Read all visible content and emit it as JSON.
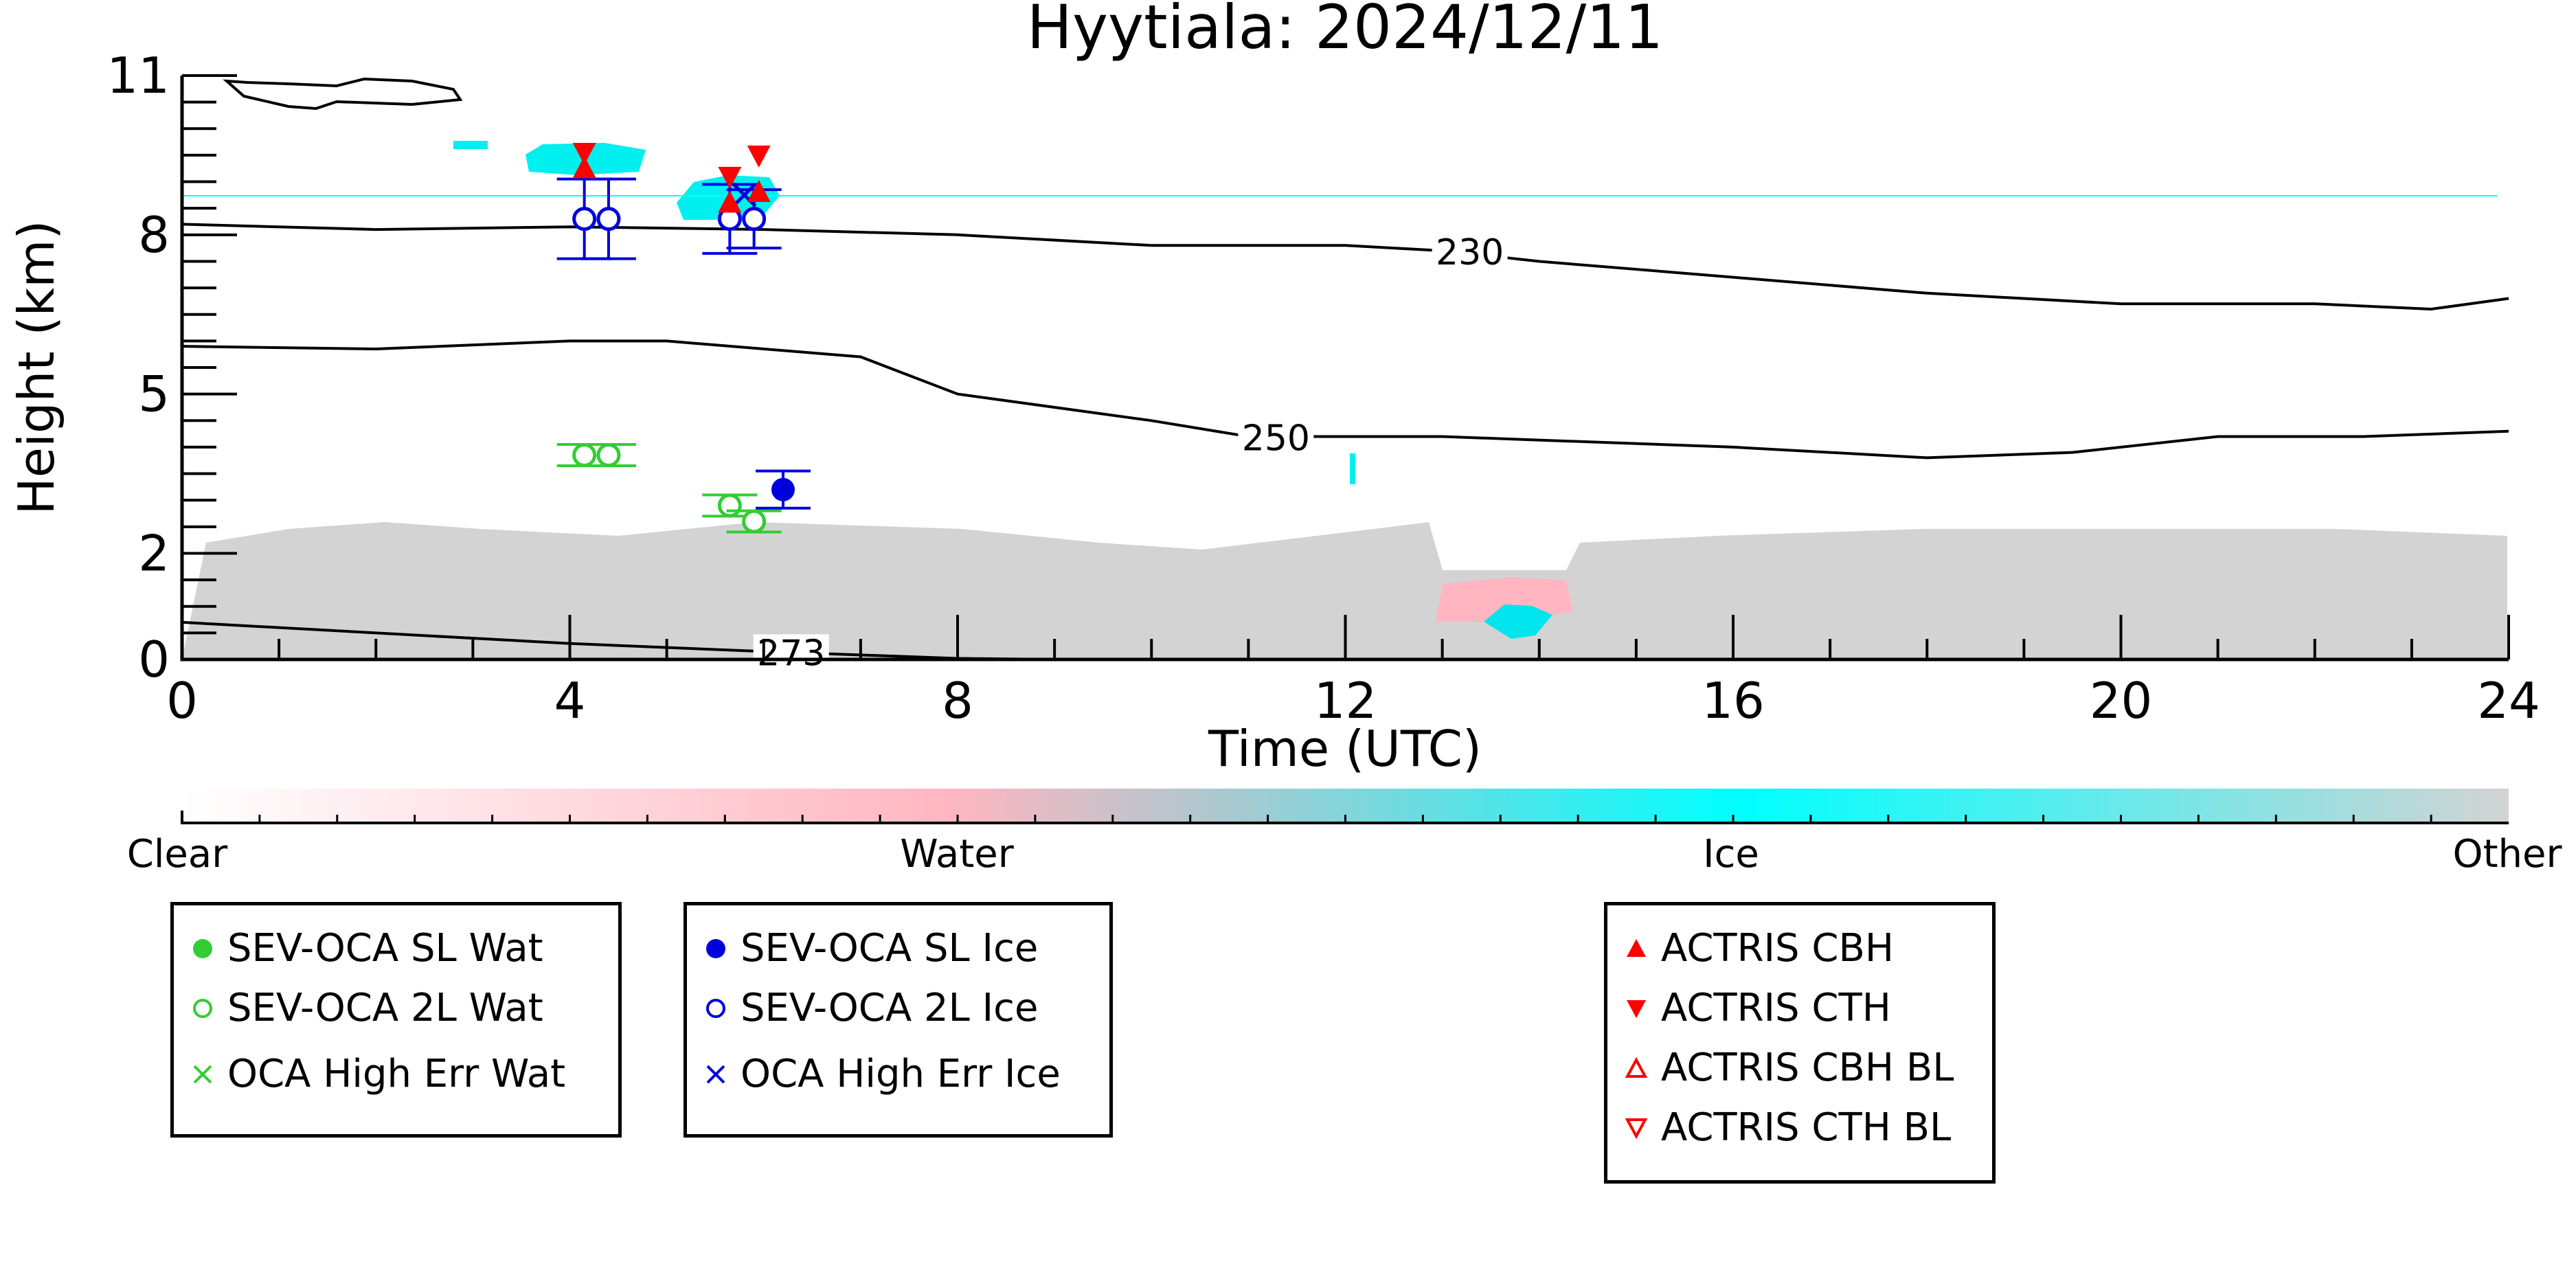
{
  "chart_data": {
    "type": "scatter",
    "title": "Hyytiala: 2024/12/11",
    "xlabel": "Time (UTC)",
    "ylabel": "Height (km)",
    "xlim": [
      0,
      24
    ],
    "ylim": [
      0,
      11
    ],
    "x_ticks": [
      "0",
      "4",
      "8",
      "12",
      "16",
      "20",
      "24"
    ],
    "y_ticks": [
      "0",
      "2",
      "5",
      "8",
      "11"
    ],
    "grid": false,
    "legend_placement": "below",
    "contours": [
      {
        "label": "230",
        "points": [
          [
            0,
            8.2
          ],
          [
            2,
            8.1
          ],
          [
            4,
            8.15
          ],
          [
            6,
            8.1
          ],
          [
            8,
            8.0
          ],
          [
            10,
            7.8
          ],
          [
            12,
            7.8
          ],
          [
            13,
            7.7
          ],
          [
            14,
            7.5
          ],
          [
            16,
            7.2
          ],
          [
            18,
            6.9
          ],
          [
            20,
            6.7
          ],
          [
            22,
            6.7
          ],
          [
            23.2,
            6.6
          ],
          [
            24,
            6.8
          ]
        ]
      },
      {
        "label": "250",
        "points": [
          [
            0,
            5.9
          ],
          [
            2,
            5.85
          ],
          [
            4,
            6.0
          ],
          [
            5,
            6.0
          ],
          [
            7,
            5.7
          ],
          [
            8,
            5.0
          ],
          [
            10,
            4.5
          ],
          [
            11,
            4.2
          ],
          [
            13,
            4.2
          ],
          [
            16,
            4.0
          ],
          [
            18,
            3.8
          ],
          [
            19.5,
            3.9
          ],
          [
            21,
            4.2
          ],
          [
            22.5,
            4.2
          ],
          [
            24,
            4.3
          ]
        ]
      },
      {
        "label": "273",
        "points": [
          [
            0,
            0.7
          ],
          [
            2,
            0.5
          ],
          [
            4,
            0.3
          ],
          [
            6,
            0.15
          ],
          [
            8,
            0.02
          ],
          [
            9,
            0.0
          ]
        ]
      }
    ],
    "series": [
      {
        "name": "SEV-OCA SL Wat",
        "marker": "filled-circle",
        "color": "#32cd32",
        "points": []
      },
      {
        "name": "SEV-OCA 2L Wat",
        "marker": "open-circle",
        "color": "#32cd32",
        "points": [
          {
            "x": 4.15,
            "y": 3.85,
            "err": 0.2
          },
          {
            "x": 4.4,
            "y": 3.85,
            "err": 0.2
          },
          {
            "x": 5.65,
            "y": 2.9,
            "err": 0.2
          },
          {
            "x": 5.9,
            "y": 2.6,
            "err": 0.2
          }
        ]
      },
      {
        "name": "OCA High Err Wat",
        "marker": "x",
        "color": "#32cd32",
        "points": []
      },
      {
        "name": "SEV-OCA SL Ice",
        "marker": "filled-circle",
        "color": "#0000dd",
        "points": [
          {
            "x": 6.2,
            "y": 3.2,
            "err": 0.35
          }
        ]
      },
      {
        "name": "SEV-OCA 2L Ice",
        "marker": "open-circle",
        "color": "#0000dd",
        "points": [
          {
            "x": 4.15,
            "y": 8.3,
            "err": 0.75
          },
          {
            "x": 4.4,
            "y": 8.3,
            "err": 0.75
          },
          {
            "x": 5.65,
            "y": 8.3,
            "err": 0.65
          },
          {
            "x": 5.9,
            "y": 8.3,
            "err": 0.55
          }
        ]
      },
      {
        "name": "OCA High Err Ice",
        "marker": "x",
        "color": "#0000dd",
        "points": [
          {
            "x": 5.8,
            "y": 8.75
          }
        ]
      },
      {
        "name": "ACTRIS CBH",
        "marker": "triangle-up",
        "color": "#ff0000",
        "points": [
          {
            "x": 4.15,
            "y": 9.25
          },
          {
            "x": 5.65,
            "y": 8.6
          },
          {
            "x": 5.95,
            "y": 8.8
          }
        ]
      },
      {
        "name": "ACTRIS CTH",
        "marker": "triangle-down",
        "color": "#ff0000",
        "points": [
          {
            "x": 4.15,
            "y": 9.55
          },
          {
            "x": 5.65,
            "y": 9.1
          },
          {
            "x": 5.95,
            "y": 9.5
          }
        ]
      },
      {
        "name": "ACTRIS CBH BL",
        "marker": "open-triangle-up",
        "color": "#ff0000",
        "points": []
      },
      {
        "name": "ACTRIS CTH BL",
        "marker": "open-triangle-down",
        "color": "#ff0000",
        "points": []
      }
    ],
    "colorbar": {
      "labels": [
        "Clear",
        "Water",
        "Ice",
        "Other"
      ],
      "colors": [
        "#ffffff",
        "#ffb6c1",
        "#00ffff",
        "#d3d3d3"
      ]
    }
  },
  "legends": {
    "water": [
      "SEV-OCA SL Wat",
      "SEV-OCA 2L Wat",
      "OCA High Err Wat"
    ],
    "ice": [
      "SEV-OCA SL Ice",
      "SEV-OCA 2L Ice",
      "OCA High Err Ice"
    ],
    "actris": [
      "ACTRIS CBH",
      "ACTRIS CTH",
      "ACTRIS CBH BL",
      "ACTRIS CTH BL"
    ]
  }
}
